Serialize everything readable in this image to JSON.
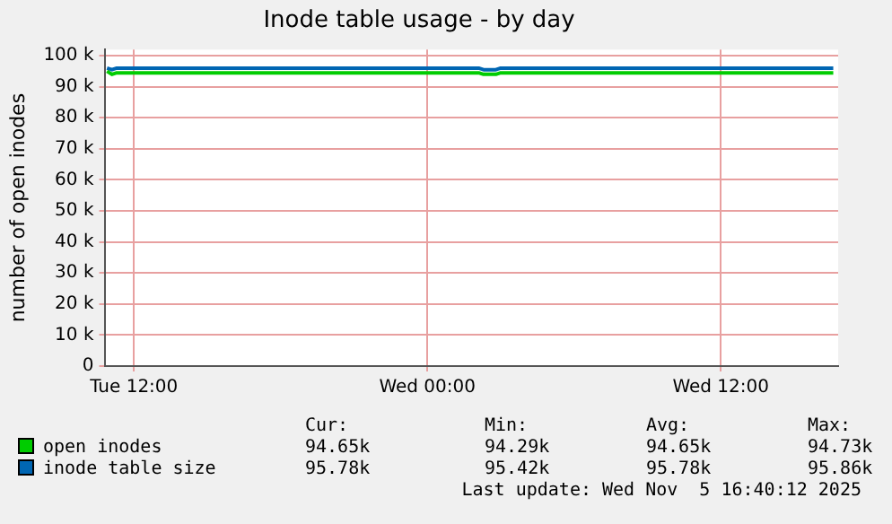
{
  "chart_data": {
    "type": "line",
    "title": "Inode table usage - by day",
    "ylabel": "number of open inodes",
    "xlim": [
      "2025-11-04T10:48",
      "2025-11-05T16:48"
    ],
    "xticks": [
      {
        "value": "2025-11-04T12:00",
        "label": "Tue 12:00"
      },
      {
        "value": "2025-11-05T00:00",
        "label": "Wed 00:00"
      },
      {
        "value": "2025-11-05T12:00",
        "label": "Wed 12:00"
      }
    ],
    "ylim": [
      0,
      102000
    ],
    "yticks": [
      0,
      {
        "value": 10000,
        "label": "10 k"
      },
      {
        "value": 20000,
        "label": "20 k"
      },
      {
        "value": 30000,
        "label": "30 k"
      },
      {
        "value": 40000,
        "label": "40 k"
      },
      {
        "value": 50000,
        "label": "50 k"
      },
      {
        "value": 60000,
        "label": "60 k"
      },
      {
        "value": 70000,
        "label": "70 k"
      },
      {
        "value": 80000,
        "label": "80 k"
      },
      {
        "value": 90000,
        "label": "90 k"
      },
      {
        "value": 100000,
        "label": "100 k"
      }
    ],
    "series": [
      {
        "name": "open inodes",
        "color": "#00cc00",
        "x": [
          "2025-11-04T10:54",
          "2025-11-04T11:06",
          "2025-11-04T11:18",
          "2025-11-05T02:06",
          "2025-11-05T02:18",
          "2025-11-05T02:48",
          "2025-11-05T03:00",
          "2025-11-05T16:36"
        ],
        "values": [
          95000,
          94000,
          94500,
          94500,
          94000,
          94000,
          94500,
          94500
        ]
      },
      {
        "name": "inode table size",
        "color": "#0066b3",
        "x": [
          "2025-11-04T10:54",
          "2025-11-04T11:06",
          "2025-11-04T11:18",
          "2025-11-05T02:06",
          "2025-11-05T02:18",
          "2025-11-05T02:48",
          "2025-11-05T03:00",
          "2025-11-05T16:36"
        ],
        "values": [
          96000,
          95500,
          96000,
          96000,
          95500,
          95500,
          96000,
          96000
        ]
      }
    ],
    "annotations": [
      "Cur:",
      "Min:",
      "Avg:",
      "Max:",
      "94.65k",
      "94.29k",
      "94.65k",
      "94.73k",
      "95.78k",
      "95.42k",
      "95.78k",
      "95.86k",
      "Last update: Wed Nov  5 16:40:12 2025"
    ],
    "grid": true,
    "legend": "bottom",
    "marker": "none",
    "line_style": "solid"
  }
}
